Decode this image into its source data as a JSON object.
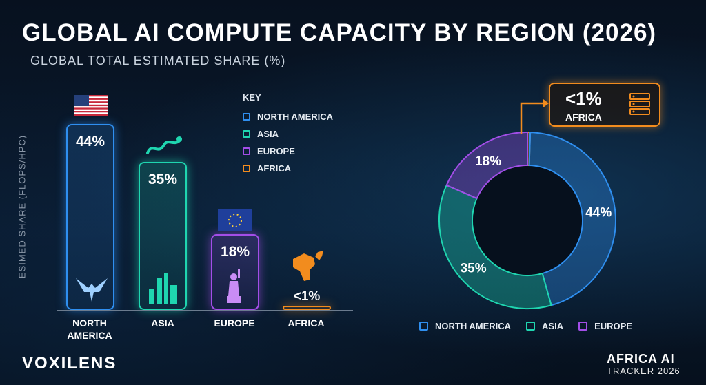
{
  "title": "GLOBAL AI COMPUTE CAPACITY BY REGION (2026)",
  "subtitle": "GLOBAL TOTAL ESTIMATED SHARE (%)",
  "brand": "VOXILENS",
  "tracker": {
    "line1": "AFRICA AI",
    "line2": "TRACKER 2026"
  },
  "key": {
    "title": "KEY",
    "items": [
      {
        "label": "NORTH AMERICA",
        "color": "#2f8ff0"
      },
      {
        "label": "ASIA",
        "color": "#1fd6b0"
      },
      {
        "label": "EUROPE",
        "color": "#a34ee8"
      },
      {
        "label": "AFRICA",
        "color": "#f28c1e"
      }
    ]
  },
  "callout": {
    "value": "<1%",
    "label": "AFRICA"
  },
  "chart_data": [
    {
      "type": "bar",
      "ylabel": "ESIMED SHARE (FLOPS/HPC)",
      "categories": [
        "NORTH AMERICA",
        "ASIA",
        "EUROPE",
        "AFRICA"
      ],
      "values": [
        44,
        35,
        18,
        0.5
      ],
      "value_labels": [
        "44%",
        "35%",
        "18%",
        "<1%"
      ],
      "colors": [
        "#2f8ff0",
        "#1fd6b0",
        "#a34ee8",
        "#f28c1e"
      ],
      "ylim": [
        0,
        44
      ]
    },
    {
      "type": "pie",
      "categories": [
        "NORTH AMERICA",
        "ASIA",
        "EUROPE",
        "AFRICA"
      ],
      "values": [
        44,
        35,
        18,
        0.5
      ],
      "value_labels": [
        "44%",
        "35%",
        "18%",
        ""
      ],
      "colors": [
        "#2f8ff0",
        "#1fd6b0",
        "#a34ee8",
        "#f28c1e"
      ],
      "legend": [
        "NORTH AMERICA",
        "ASIA",
        "EUROPE"
      ]
    }
  ]
}
